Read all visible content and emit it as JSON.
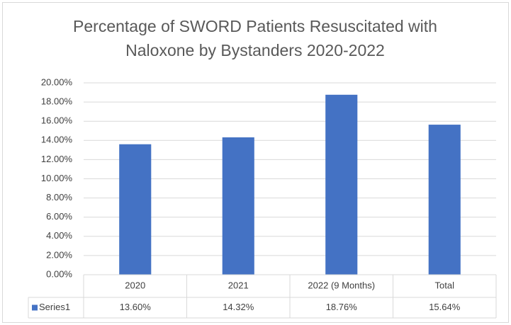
{
  "chart_data": {
    "type": "bar",
    "title": "Percentage of SWORD Patients Resuscitated with Naloxone by Bystanders 2020-2022",
    "categories": [
      "2020",
      "2021",
      "2022 (9 Months)",
      "Total"
    ],
    "series": [
      {
        "name": "Series1",
        "color": "#4472c4",
        "values": [
          13.6,
          14.32,
          18.76,
          15.64
        ],
        "value_labels": [
          "13.60%",
          "14.32%",
          "18.76%",
          "15.64%"
        ]
      }
    ],
    "ylim": [
      0,
      20
    ],
    "yticks": [
      {
        "value": 0,
        "label": "0.00%"
      },
      {
        "value": 2,
        "label": "2.00%"
      },
      {
        "value": 4,
        "label": "4.00%"
      },
      {
        "value": 6,
        "label": "6.00%"
      },
      {
        "value": 8,
        "label": "8.00%"
      },
      {
        "value": 10,
        "label": "10.00%"
      },
      {
        "value": 12,
        "label": "12.00%"
      },
      {
        "value": 14,
        "label": "14.00%"
      },
      {
        "value": 16,
        "label": "16.00%"
      },
      {
        "value": 18,
        "label": "18.00%"
      },
      {
        "value": 20,
        "label": "20.00%"
      }
    ],
    "grid": true,
    "data_table": true
  }
}
